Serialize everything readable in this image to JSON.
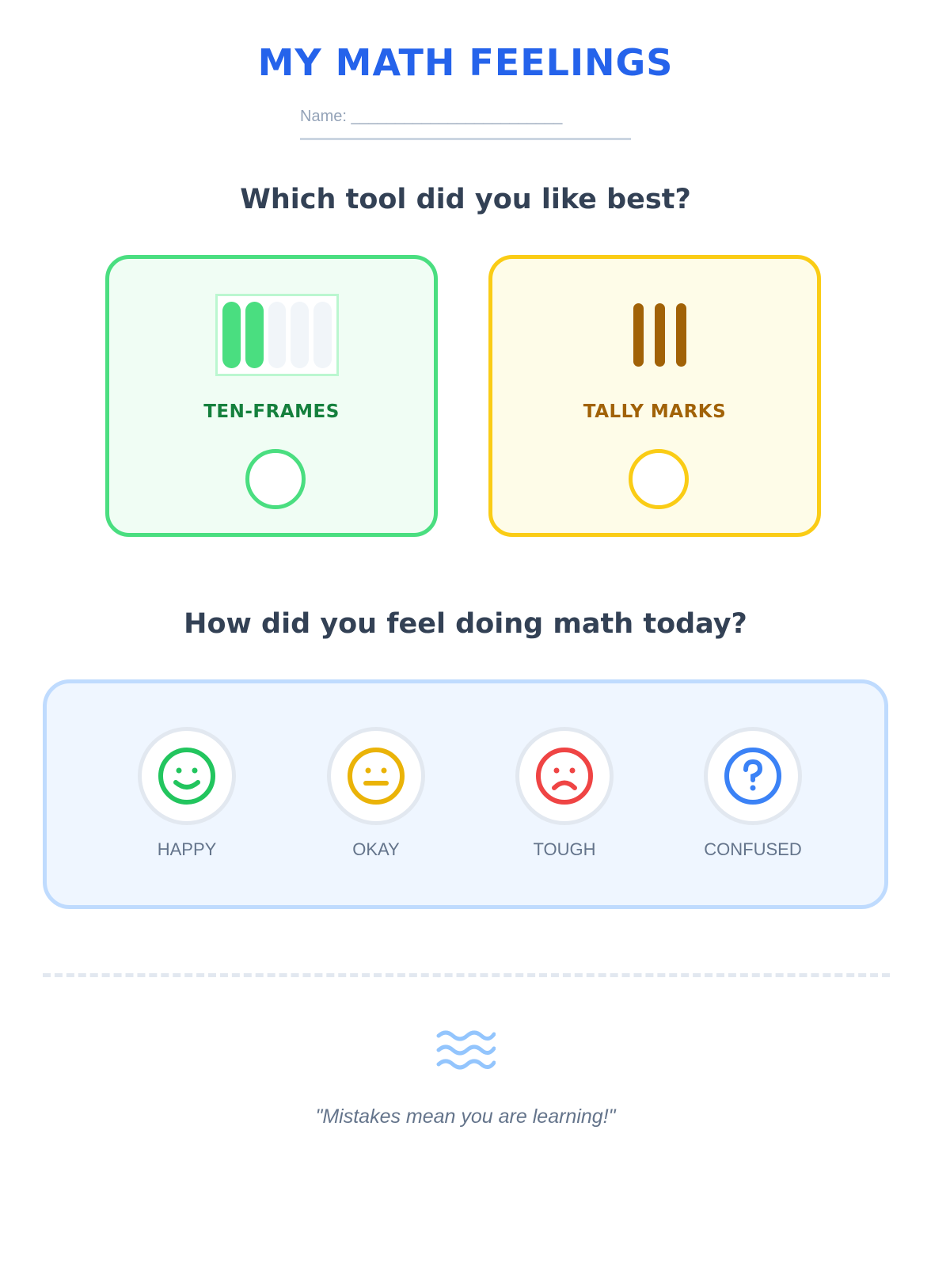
{
  "title": "MY MATH FEELINGS",
  "name_field": "Name: ________________________",
  "question1": "Which tool did you like best?",
  "tools": [
    {
      "label": "TEN-FRAMES",
      "filled": 2,
      "total": 5,
      "accent": "#4ade80",
      "text_color": "#15803d",
      "bg": "#f0fdf4"
    },
    {
      "label": "TALLY MARKS",
      "tally_count": 3,
      "accent": "#facc15",
      "text_color": "#a16207",
      "bg": "#fefce8"
    }
  ],
  "question2": "How did you feel doing math today?",
  "feelings": [
    {
      "label": "HAPPY",
      "icon": "happy-face-icon",
      "color": "#22c55e"
    },
    {
      "label": "OKAY",
      "icon": "neutral-face-icon",
      "color": "#eab308"
    },
    {
      "label": "TOUGH",
      "icon": "sad-face-icon",
      "color": "#ef4444"
    },
    {
      "label": "CONFUSED",
      "icon": "question-icon",
      "color": "#3b82f6"
    }
  ],
  "footer": {
    "icon": "waves-icon",
    "quote": "\"Mistakes mean you are learning!\""
  }
}
